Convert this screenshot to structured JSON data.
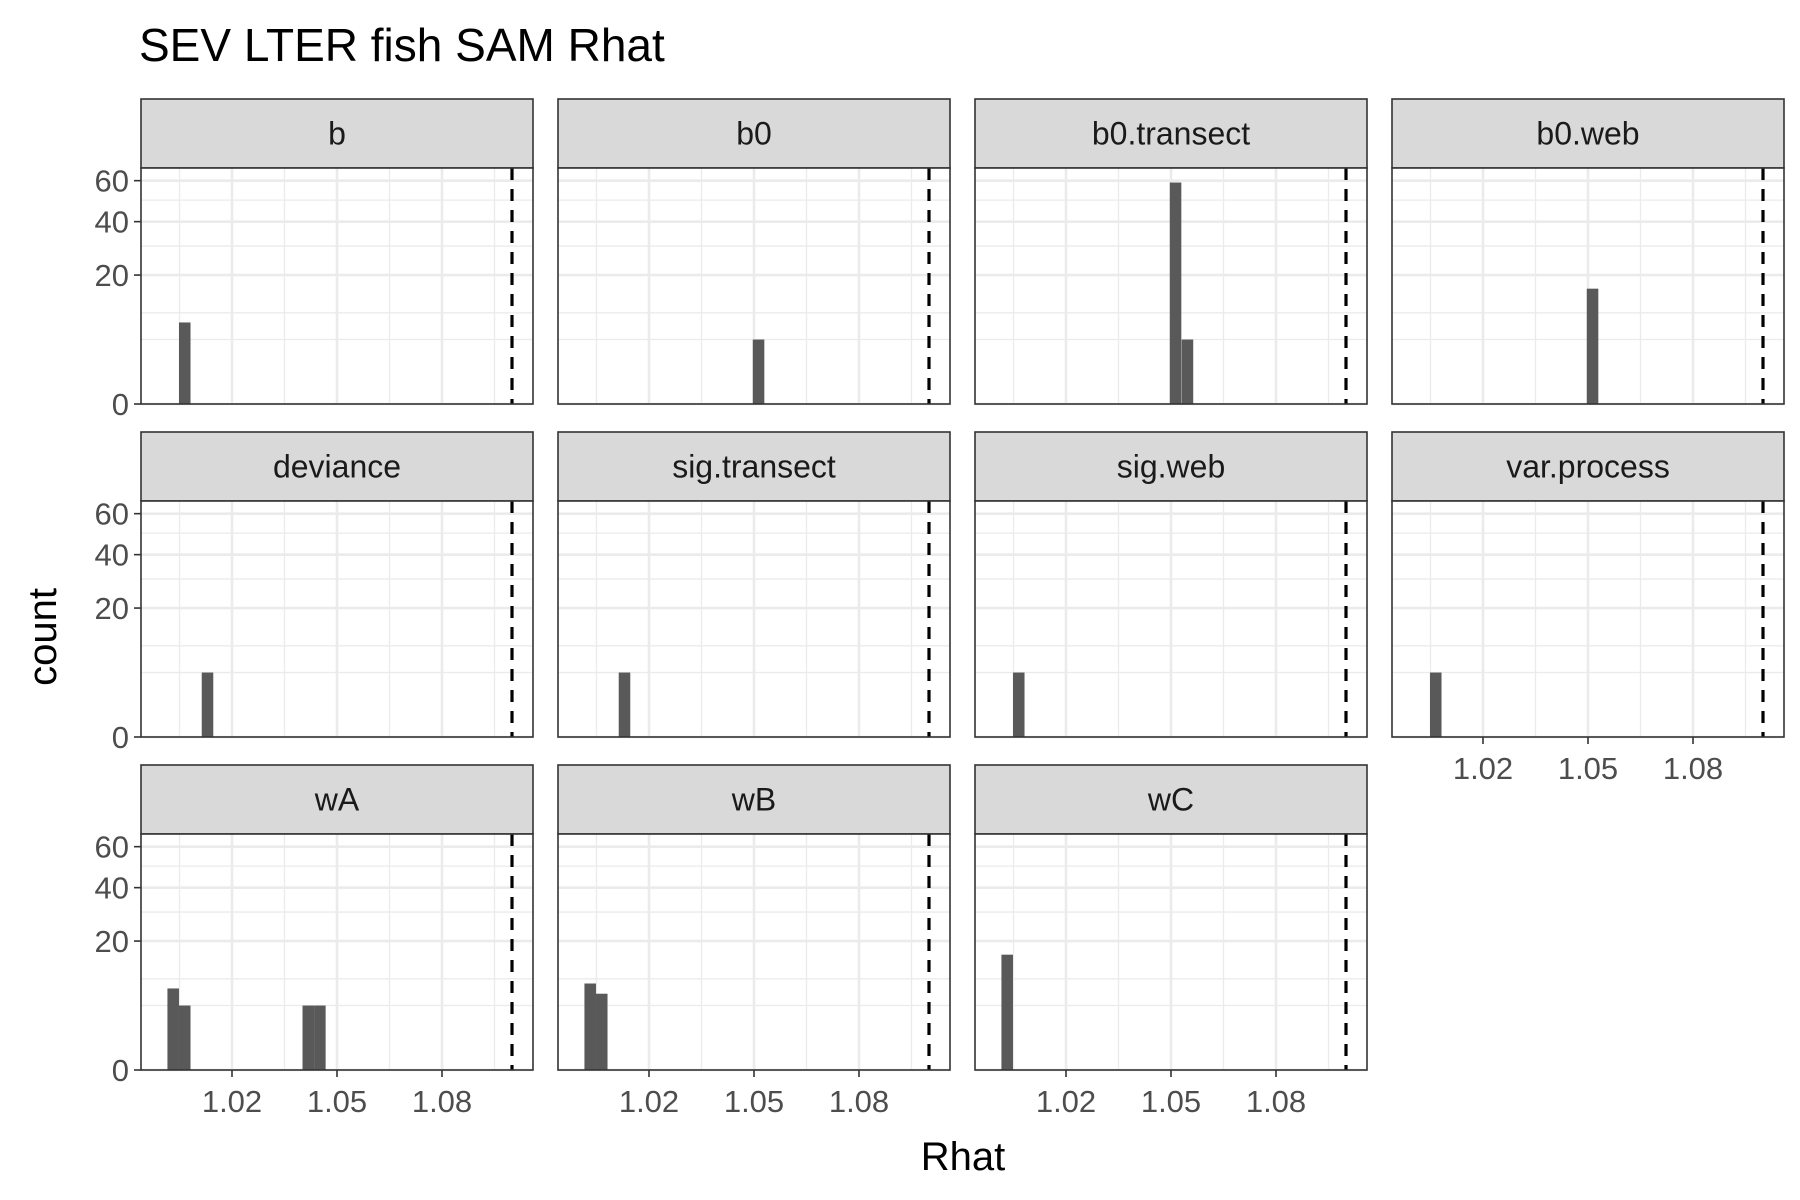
{
  "chart_data": {
    "type": "bar",
    "title": "SEV LTER fish SAM Rhat",
    "xlabel": "Rhat",
    "ylabel": "count",
    "x_ticks": [
      1.02,
      1.05,
      1.08
    ],
    "y_ticks": [
      0,
      20,
      40,
      60
    ],
    "y_scale": "sqrt",
    "xlim": [
      0.994,
      1.106
    ],
    "ylim": [
      0,
      67
    ],
    "bin_width": 0.0033,
    "reference_line_x": 1.1,
    "grid": true,
    "legend": "none",
    "colors": {
      "bar": "#595959",
      "strip_fill": "#d9d9d9",
      "panel_border": "#333333",
      "grid": "#ebebeb",
      "reference_line": "#000000"
    },
    "panels": [
      {
        "name": "b",
        "bins": [
          {
            "x": 1.0065,
            "count": 8
          }
        ]
      },
      {
        "name": "b0",
        "bins": [
          {
            "x": 1.0513,
            "count": 5
          }
        ]
      },
      {
        "name": "b0.transect",
        "bins": [
          {
            "x": 1.0513,
            "count": 59
          },
          {
            "x": 1.0547,
            "count": 5
          }
        ]
      },
      {
        "name": "b0.web",
        "bins": [
          {
            "x": 1.0513,
            "count": 16
          }
        ]
      },
      {
        "name": "deviance",
        "bins": [
          {
            "x": 1.013,
            "count": 5
          }
        ]
      },
      {
        "name": "sig.transect",
        "bins": [
          {
            "x": 1.013,
            "count": 5
          }
        ]
      },
      {
        "name": "sig.web",
        "bins": [
          {
            "x": 1.0065,
            "count": 5
          }
        ]
      },
      {
        "name": "var.process",
        "bins": [
          {
            "x": 1.0065,
            "count": 5
          }
        ]
      },
      {
        "name": "wA",
        "bins": [
          {
            "x": 1.0032,
            "count": 8
          },
          {
            "x": 1.0065,
            "count": 5
          },
          {
            "x": 1.0418,
            "count": 5
          },
          {
            "x": 1.0451,
            "count": 5
          }
        ]
      },
      {
        "name": "wB",
        "bins": [
          {
            "x": 1.0032,
            "count": 9
          },
          {
            "x": 1.0065,
            "count": 7
          }
        ]
      },
      {
        "name": "wC",
        "bins": [
          {
            "x": 1.0032,
            "count": 16
          }
        ]
      }
    ]
  }
}
